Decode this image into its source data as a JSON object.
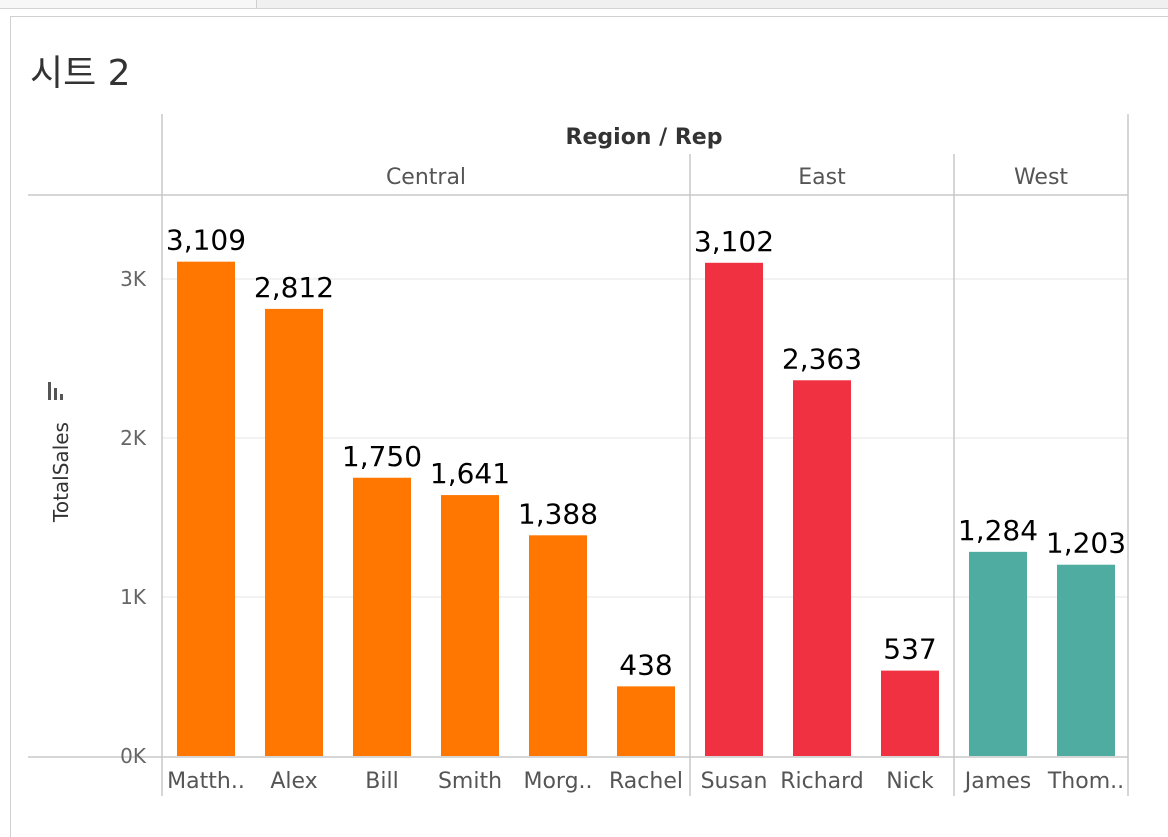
{
  "sheet": {
    "title": "시트 2"
  },
  "colors": {
    "Central": "#ff7600",
    "East": "#f03142",
    "West": "#4eaca1",
    "grid": "#e6e6e6",
    "divider": "#c8c8c8"
  },
  "chart_data": {
    "type": "bar",
    "title": "Region / Rep",
    "ylabel": "TotalSales",
    "ylim": [
      0,
      3500
    ],
    "yticks": [
      {
        "value": 0,
        "label": "0K"
      },
      {
        "value": 1000,
        "label": "1K"
      },
      {
        "value": 2000,
        "label": "2K"
      },
      {
        "value": 3000,
        "label": "3K"
      }
    ],
    "groups": [
      {
        "name": "Central",
        "categories": [
          "Matth..",
          "Alex",
          "Bill",
          "Smith",
          "Morg..",
          "Rachel"
        ],
        "values": [
          3109,
          2812,
          1750,
          1641,
          1388,
          438
        ],
        "labels": [
          "3,109",
          "2,812",
          "1,750",
          "1,641",
          "1,388",
          "438"
        ]
      },
      {
        "name": "East",
        "categories": [
          "Susan",
          "Richard",
          "Nick"
        ],
        "values": [
          3102,
          2363,
          537
        ],
        "labels": [
          "3,102",
          "2,363",
          "537"
        ]
      },
      {
        "name": "West",
        "categories": [
          "James",
          "Thom.."
        ],
        "values": [
          1284,
          1203
        ],
        "labels": [
          "1,284",
          "1,203"
        ]
      }
    ]
  }
}
